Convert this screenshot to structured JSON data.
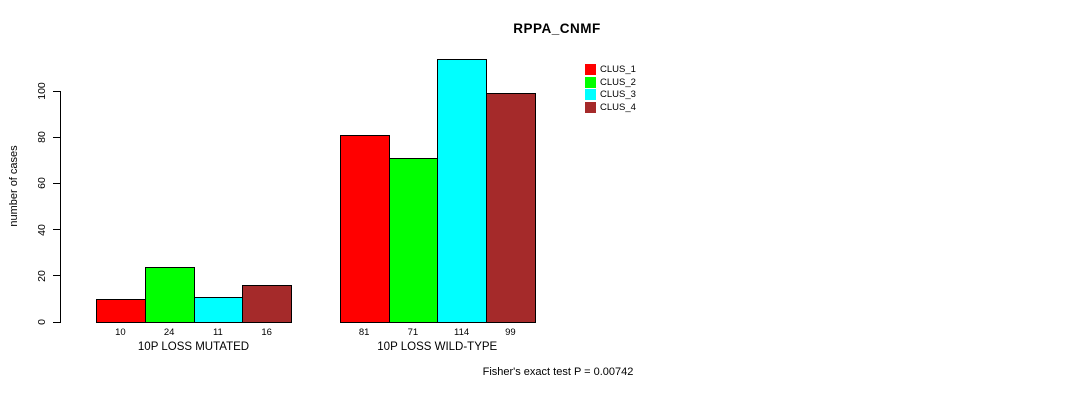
{
  "chart_data": {
    "type": "bar",
    "title": "RPPA_CNMF",
    "ylabel": "number of cases",
    "xlabel": "",
    "ylim": [
      0,
      100
    ],
    "yticks": [
      0,
      20,
      40,
      60,
      80,
      100
    ],
    "grid": false,
    "legend_position": "top-right",
    "categories": [
      "10P LOSS MUTATED",
      "10P LOSS WILD-TYPE"
    ],
    "series": [
      {
        "name": "CLUS_1",
        "color": "#FF0000",
        "values": [
          10,
          81
        ]
      },
      {
        "name": "CLUS_2",
        "color": "#00FF00",
        "values": [
          24,
          71
        ]
      },
      {
        "name": "CLUS_3",
        "color": "#00FFFF",
        "values": [
          11,
          114
        ]
      },
      {
        "name": "CLUS_4",
        "color": "#A52A2A",
        "values": [
          16,
          99
        ]
      }
    ],
    "bar_value_labels": [
      [
        10,
        24,
        11,
        16
      ],
      [
        81,
        71,
        114,
        99
      ]
    ],
    "annotation": "Fisher's exact test P = 0.00742",
    "bar_border_color": "#000000"
  }
}
